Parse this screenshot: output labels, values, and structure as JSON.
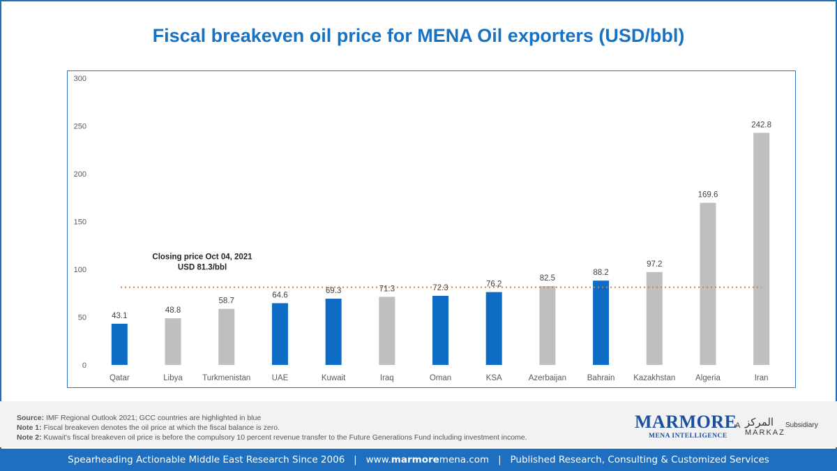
{
  "title": "Fiscal breakeven oil price for MENA Oil exporters (USD/bbl)",
  "chart_data": {
    "type": "bar",
    "categories": [
      "Qatar",
      "Libya",
      "Turkmenistan",
      "UAE",
      "Kuwait",
      "Iraq",
      "Oman",
      "KSA",
      "Azerbaijan",
      "Bahrain",
      "Kazakhstan",
      "Algeria",
      "Iran"
    ],
    "values": [
      43.1,
      48.8,
      58.7,
      64.6,
      69.3,
      71.3,
      72.3,
      76.2,
      82.5,
      88.2,
      97.2,
      169.6,
      242.8
    ],
    "value_labels": [
      "43.1",
      "48.8",
      "58.7",
      "64.6",
      "69.3",
      "71.3",
      "72.3",
      "76.2",
      "82.5",
      "88.2",
      "97.2",
      "169.6",
      "242.8"
    ],
    "gcc_highlight": [
      true,
      false,
      false,
      true,
      true,
      false,
      true,
      true,
      false,
      true,
      false,
      false,
      false
    ],
    "yticks": [
      0,
      50,
      100,
      150,
      200,
      250,
      300
    ],
    "ylim": [
      0,
      300
    ],
    "reference_line": {
      "value": 81.3,
      "label_line1": "Closing price Oct 04, 2021",
      "label_line2": "USD 81.3/bbl"
    },
    "colors": {
      "gcc": "#0f6cc4",
      "other": "#bfbfbf",
      "reference": "#e8772e",
      "grid": "#d9d9d9"
    },
    "grid": true,
    "legend": "none"
  },
  "notes": {
    "source_label": "Source:",
    "source_text": " IMF Regional Outlook 2021; GCC countries are highlighted in blue",
    "note1_label": "Note 1:",
    "note1_text": " Fiscal breakeven denotes the oil price at which the fiscal balance is zero.",
    "note2_label": "Note 2:",
    "note2_text": " Kuwait's fiscal breakeven oil price is before the compulsory 10 percent revenue transfer to the Future Generations Fund including investment income."
  },
  "logo": {
    "main": "MARMORE",
    "sub": "MENA INTELLIGENCE",
    "a": "A",
    "arabic": "المركز",
    "markaz": "MARKAZ",
    "subsidiary": "Subsidiary"
  },
  "footer": {
    "part1": "Spearheading Actionable Middle East Research Since 2006",
    "sep1": "|",
    "url_prefix": "www.",
    "url_bold": "marmore",
    "url_suffix": "mena.com",
    "sep2": "|",
    "part3": "Published Research, Consulting & Customized Services"
  }
}
